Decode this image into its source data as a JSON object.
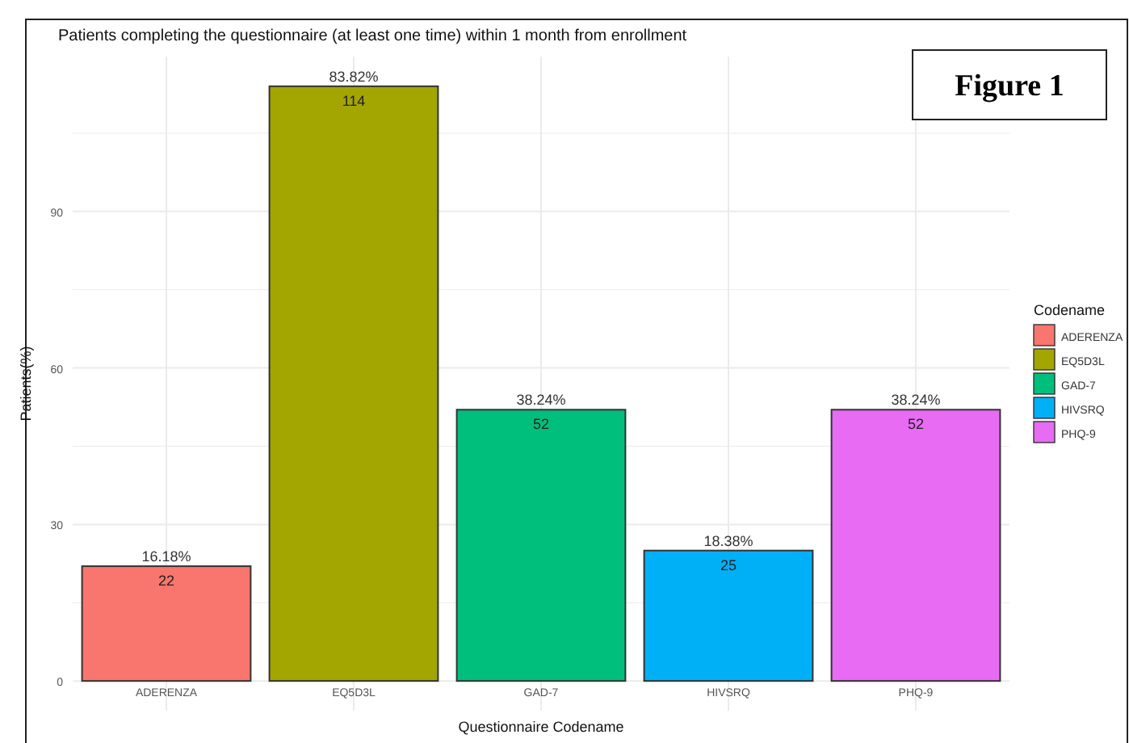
{
  "chart_data": {
    "type": "bar",
    "title": "Patients completing the questionnaire (at least one time) within 1 month from enrollment",
    "xlabel": "Questionnaire Codename",
    "ylabel": "Patients(%)",
    "legend_title": "Codename",
    "annotations": [
      "Figure 1",
      {
        "text": "16.18%",
        "x": "ADERENZA",
        "y": 22
      },
      {
        "text": "83.82%",
        "x": "EQ5D3L",
        "y": 114
      },
      {
        "text": "38.24%",
        "x": "GAD-7",
        "y": 52
      },
      {
        "text": "18.38%",
        "x": "HIVSRQ",
        "y": 25
      },
      {
        "text": "38.24%",
        "x": "PHQ-9",
        "y": 52
      }
    ],
    "categories": [
      "ADERENZA",
      "EQ5D3L",
      "GAD-7",
      "HIVSRQ",
      "PHQ-9"
    ],
    "series": [
      {
        "name": "ADERENZA",
        "color": "#f8766d",
        "values": [
          22,
          null,
          null,
          null,
          null
        ]
      },
      {
        "name": "EQ5D3L",
        "color": "#a3a500",
        "values": [
          null,
          114,
          null,
          null,
          null
        ]
      },
      {
        "name": "GAD-7",
        "color": "#00bf7d",
        "values": [
          null,
          null,
          52,
          null,
          null
        ]
      },
      {
        "name": "HIVSRQ",
        "color": "#00b0f6",
        "values": [
          null,
          null,
          null,
          25,
          null
        ]
      },
      {
        "name": "PHQ-9",
        "color": "#e76bf3",
        "values": [
          null,
          null,
          null,
          null,
          52
        ]
      }
    ],
    "data_labels": true,
    "ylim": [
      -5.7,
      119.7
    ],
    "yticks": [
      0,
      {
        "value": 15,
        "label": null
      },
      30,
      {
        "value": 45,
        "label": null
      },
      60,
      {
        "value": 75,
        "label": null
      },
      90,
      {
        "value": 105,
        "label": null
      }
    ],
    "grid": true,
    "legend": "right"
  }
}
